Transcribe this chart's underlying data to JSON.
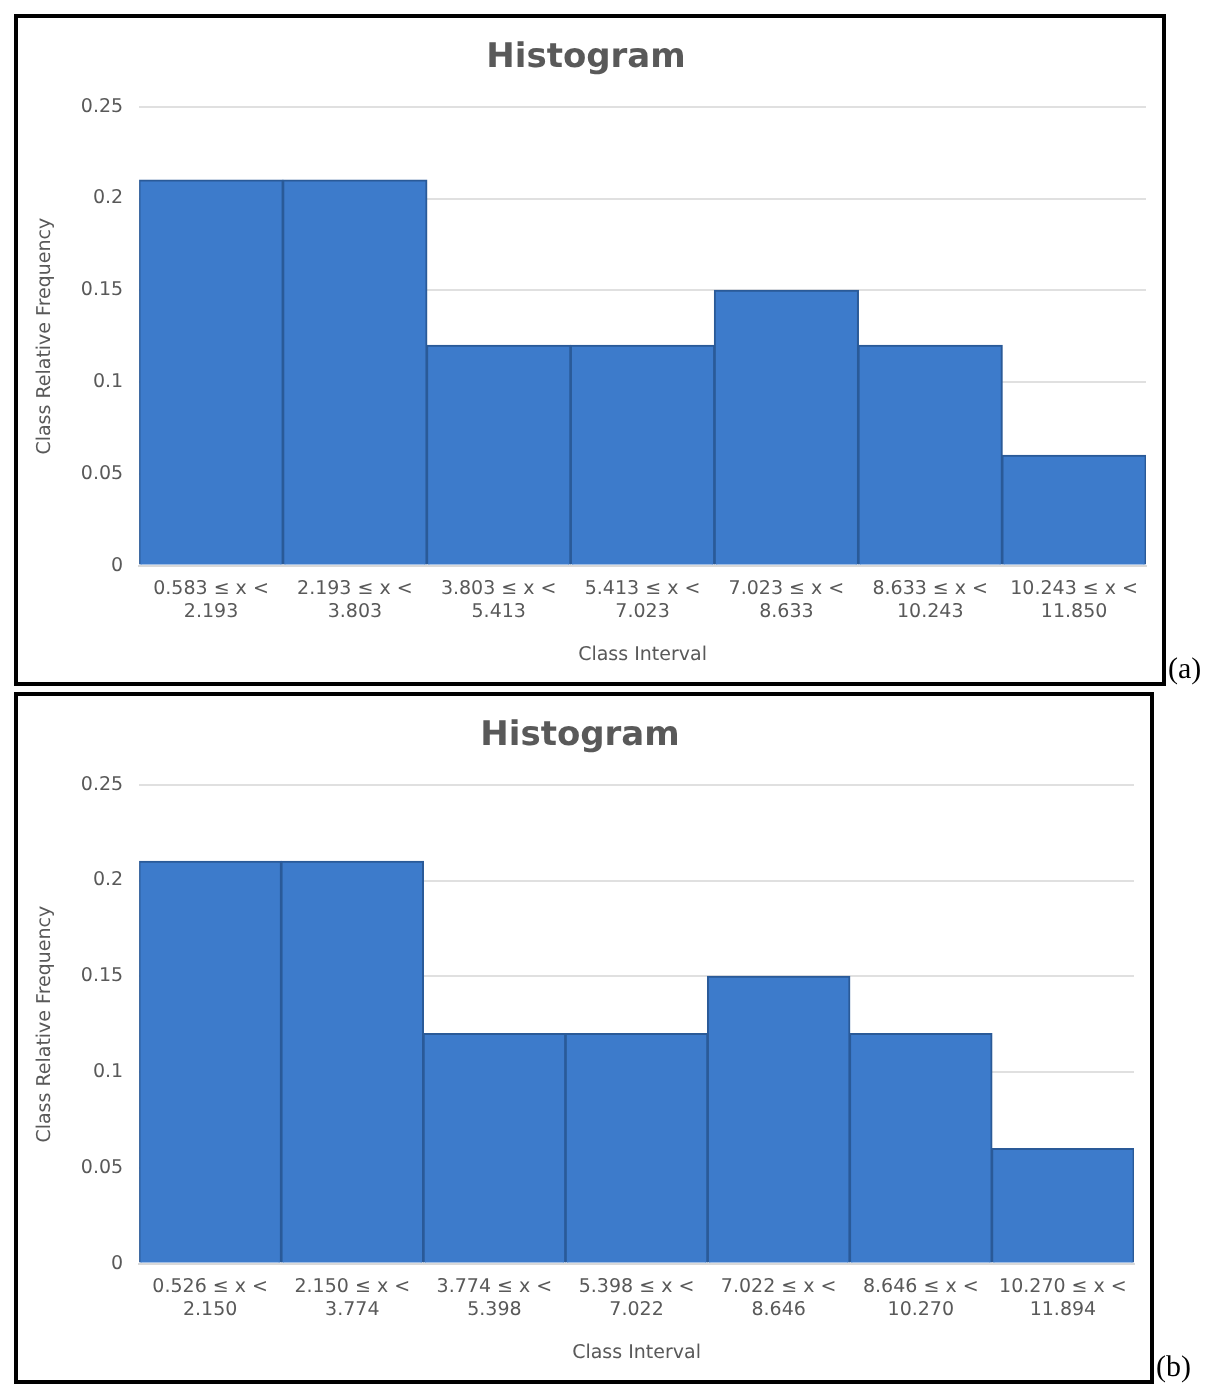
{
  "chart_data": [
    {
      "type": "bar",
      "title": "Histogram",
      "xlabel": "Class Interval",
      "ylabel": "Class Relative Frequency",
      "categories": [
        "0.583 ≤ x < 2.193",
        "2.193 ≤ x < 3.803",
        "3.803 ≤ x < 5.413",
        "5.413 ≤ x < 7.023",
        "7.023 ≤ x < 8.633",
        "8.633 ≤ x < 10.243",
        "10.243 ≤ x < 11.850"
      ],
      "values": [
        0.21,
        0.21,
        0.12,
        0.12,
        0.15,
        0.12,
        0.06
      ],
      "color": "#3d7bcb",
      "ylim": [
        0,
        0.25
      ],
      "yticks": [
        0,
        0.05,
        0.1,
        0.15,
        0.2,
        0.25
      ],
      "grid": "y",
      "legend": false,
      "annotations": [
        "(a)"
      ]
    },
    {
      "type": "bar",
      "title": "Histogram",
      "xlabel": "Class Interval",
      "ylabel": "Class Relative Frequency",
      "categories": [
        "0.526 ≤ x < 2.150",
        "2.150 ≤ x < 3.774",
        "3.774 ≤ x < 5.398",
        "5.398 ≤ x < 7.022",
        "7.022 ≤ x < 8.646",
        "8.646 ≤ x < 10.270",
        "10.270 ≤ x < 11.894"
      ],
      "values": [
        0.21,
        0.21,
        0.12,
        0.12,
        0.15,
        0.12,
        0.06
      ],
      "color": "#3d7bcb",
      "ylim": [
        0,
        0.25
      ],
      "yticks": [
        0,
        0.05,
        0.1,
        0.15,
        0.2,
        0.25
      ],
      "grid": "y",
      "legend": false,
      "annotations": [
        "(b)"
      ]
    }
  ]
}
